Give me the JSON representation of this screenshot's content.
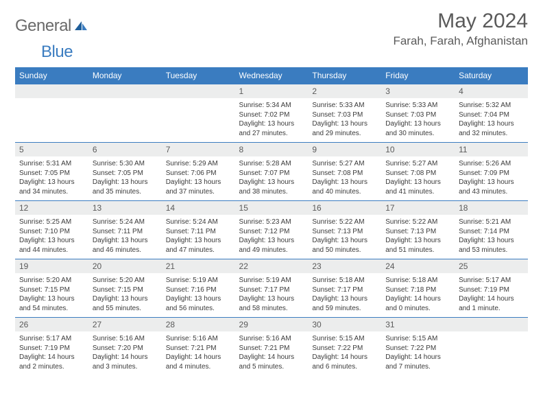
{
  "brand": {
    "gray": "General",
    "blue": "Blue"
  },
  "title": "May 2024",
  "location": "Farah, Farah, Afghanistan",
  "colors": {
    "header_bg": "#3a7cc0",
    "header_text": "#ffffff",
    "daynum_bg": "#eceded",
    "text": "#3a3a3a",
    "muted": "#5a5a5a"
  },
  "weekdays": [
    "Sunday",
    "Monday",
    "Tuesday",
    "Wednesday",
    "Thursday",
    "Friday",
    "Saturday"
  ],
  "weeks": [
    [
      null,
      null,
      null,
      {
        "n": "1",
        "sunrise": "5:34 AM",
        "sunset": "7:02 PM",
        "daylight": "13 hours and 27 minutes."
      },
      {
        "n": "2",
        "sunrise": "5:33 AM",
        "sunset": "7:03 PM",
        "daylight": "13 hours and 29 minutes."
      },
      {
        "n": "3",
        "sunrise": "5:33 AM",
        "sunset": "7:03 PM",
        "daylight": "13 hours and 30 minutes."
      },
      {
        "n": "4",
        "sunrise": "5:32 AM",
        "sunset": "7:04 PM",
        "daylight": "13 hours and 32 minutes."
      }
    ],
    [
      {
        "n": "5",
        "sunrise": "5:31 AM",
        "sunset": "7:05 PM",
        "daylight": "13 hours and 34 minutes."
      },
      {
        "n": "6",
        "sunrise": "5:30 AM",
        "sunset": "7:05 PM",
        "daylight": "13 hours and 35 minutes."
      },
      {
        "n": "7",
        "sunrise": "5:29 AM",
        "sunset": "7:06 PM",
        "daylight": "13 hours and 37 minutes."
      },
      {
        "n": "8",
        "sunrise": "5:28 AM",
        "sunset": "7:07 PM",
        "daylight": "13 hours and 38 minutes."
      },
      {
        "n": "9",
        "sunrise": "5:27 AM",
        "sunset": "7:08 PM",
        "daylight": "13 hours and 40 minutes."
      },
      {
        "n": "10",
        "sunrise": "5:27 AM",
        "sunset": "7:08 PM",
        "daylight": "13 hours and 41 minutes."
      },
      {
        "n": "11",
        "sunrise": "5:26 AM",
        "sunset": "7:09 PM",
        "daylight": "13 hours and 43 minutes."
      }
    ],
    [
      {
        "n": "12",
        "sunrise": "5:25 AM",
        "sunset": "7:10 PM",
        "daylight": "13 hours and 44 minutes."
      },
      {
        "n": "13",
        "sunrise": "5:24 AM",
        "sunset": "7:11 PM",
        "daylight": "13 hours and 46 minutes."
      },
      {
        "n": "14",
        "sunrise": "5:24 AM",
        "sunset": "7:11 PM",
        "daylight": "13 hours and 47 minutes."
      },
      {
        "n": "15",
        "sunrise": "5:23 AM",
        "sunset": "7:12 PM",
        "daylight": "13 hours and 49 minutes."
      },
      {
        "n": "16",
        "sunrise": "5:22 AM",
        "sunset": "7:13 PM",
        "daylight": "13 hours and 50 minutes."
      },
      {
        "n": "17",
        "sunrise": "5:22 AM",
        "sunset": "7:13 PM",
        "daylight": "13 hours and 51 minutes."
      },
      {
        "n": "18",
        "sunrise": "5:21 AM",
        "sunset": "7:14 PM",
        "daylight": "13 hours and 53 minutes."
      }
    ],
    [
      {
        "n": "19",
        "sunrise": "5:20 AM",
        "sunset": "7:15 PM",
        "daylight": "13 hours and 54 minutes."
      },
      {
        "n": "20",
        "sunrise": "5:20 AM",
        "sunset": "7:15 PM",
        "daylight": "13 hours and 55 minutes."
      },
      {
        "n": "21",
        "sunrise": "5:19 AM",
        "sunset": "7:16 PM",
        "daylight": "13 hours and 56 minutes."
      },
      {
        "n": "22",
        "sunrise": "5:19 AM",
        "sunset": "7:17 PM",
        "daylight": "13 hours and 58 minutes."
      },
      {
        "n": "23",
        "sunrise": "5:18 AM",
        "sunset": "7:17 PM",
        "daylight": "13 hours and 59 minutes."
      },
      {
        "n": "24",
        "sunrise": "5:18 AM",
        "sunset": "7:18 PM",
        "daylight": "14 hours and 0 minutes."
      },
      {
        "n": "25",
        "sunrise": "5:17 AM",
        "sunset": "7:19 PM",
        "daylight": "14 hours and 1 minute."
      }
    ],
    [
      {
        "n": "26",
        "sunrise": "5:17 AM",
        "sunset": "7:19 PM",
        "daylight": "14 hours and 2 minutes."
      },
      {
        "n": "27",
        "sunrise": "5:16 AM",
        "sunset": "7:20 PM",
        "daylight": "14 hours and 3 minutes."
      },
      {
        "n": "28",
        "sunrise": "5:16 AM",
        "sunset": "7:21 PM",
        "daylight": "14 hours and 4 minutes."
      },
      {
        "n": "29",
        "sunrise": "5:16 AM",
        "sunset": "7:21 PM",
        "daylight": "14 hours and 5 minutes."
      },
      {
        "n": "30",
        "sunrise": "5:15 AM",
        "sunset": "7:22 PM",
        "daylight": "14 hours and 6 minutes."
      },
      {
        "n": "31",
        "sunrise": "5:15 AM",
        "sunset": "7:22 PM",
        "daylight": "14 hours and 7 minutes."
      },
      null
    ]
  ],
  "labels": {
    "sunrise": "Sunrise: ",
    "sunset": "Sunset: ",
    "daylight": "Daylight: "
  }
}
